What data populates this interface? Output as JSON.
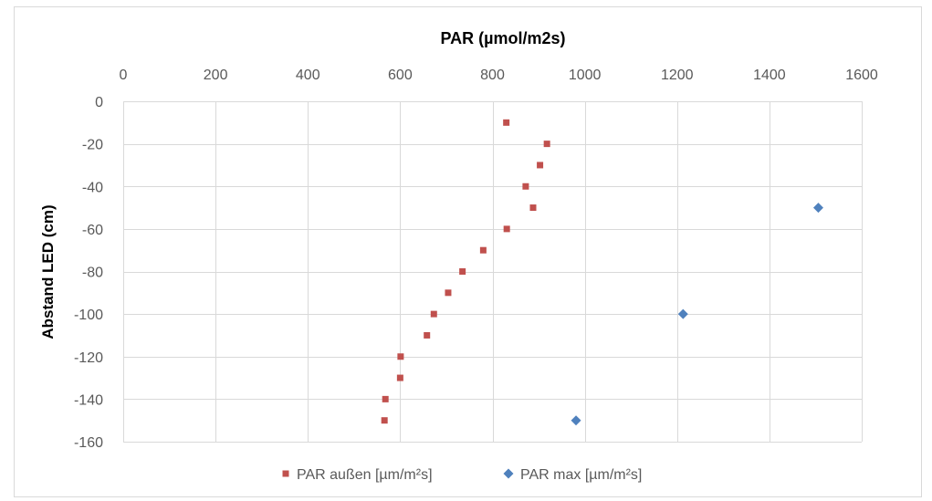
{
  "chart_data": {
    "type": "scatter",
    "title": "PAR (µmol/m2s)",
    "xlabel": "PAR (µmol/m2s)",
    "ylabel": "Abstand LED (cm)",
    "xlim": [
      0,
      1600
    ],
    "ylim": [
      -160,
      0
    ],
    "x_ticks": [
      0,
      200,
      400,
      600,
      800,
      1000,
      1200,
      1400,
      1600
    ],
    "y_ticks": [
      0,
      -20,
      -40,
      -60,
      -80,
      -100,
      -120,
      -140,
      -160
    ],
    "x_axis_position": "top",
    "grid": true,
    "legend_position": "bottom",
    "series": [
      {
        "name": "PAR außen [µm/m²s]",
        "marker": "square",
        "color": "#c0504d",
        "points": [
          {
            "x": 830,
            "y": -10
          },
          {
            "x": 918,
            "y": -20
          },
          {
            "x": 903,
            "y": -30
          },
          {
            "x": 872,
            "y": -40
          },
          {
            "x": 888,
            "y": -50
          },
          {
            "x": 831,
            "y": -60
          },
          {
            "x": 780,
            "y": -70
          },
          {
            "x": 735,
            "y": -80
          },
          {
            "x": 704,
            "y": -90
          },
          {
            "x": 673,
            "y": -100
          },
          {
            "x": 658,
            "y": -110
          },
          {
            "x": 601,
            "y": -120
          },
          {
            "x": 600,
            "y": -130
          },
          {
            "x": 568,
            "y": -140
          },
          {
            "x": 566,
            "y": -150
          }
        ]
      },
      {
        "name": "PAR max  [µm/m²s]",
        "marker": "diamond",
        "color": "#4f81bd",
        "points": [
          {
            "x": 1506,
            "y": -50
          },
          {
            "x": 1213,
            "y": -100
          },
          {
            "x": 981,
            "y": -150
          }
        ]
      }
    ]
  }
}
